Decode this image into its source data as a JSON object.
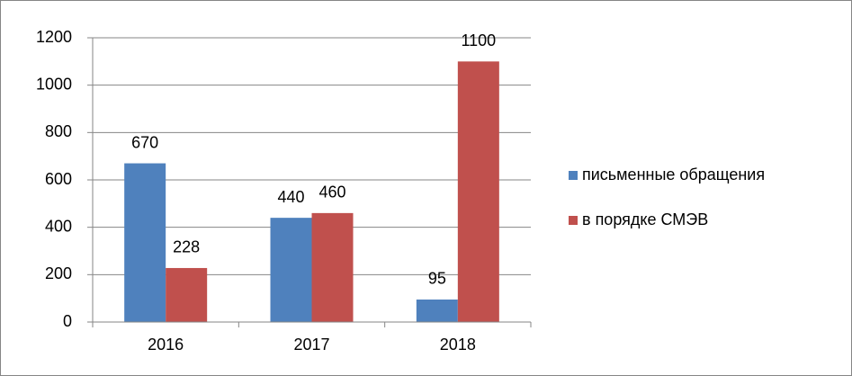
{
  "chart_data": {
    "type": "bar",
    "categories": [
      "2016",
      "2017",
      "2018"
    ],
    "series": [
      {
        "name": "письменные обращения",
        "color": "#4f81bd",
        "values": [
          670,
          440,
          95
        ]
      },
      {
        "name": "в порядке СМЭВ",
        "color": "#c0504d",
        "values": [
          228,
          460,
          1100
        ]
      }
    ],
    "ylim": [
      0,
      1200
    ],
    "yticks": [
      0,
      200,
      400,
      600,
      800,
      1000,
      1200
    ],
    "grid": true,
    "legend": "right"
  }
}
